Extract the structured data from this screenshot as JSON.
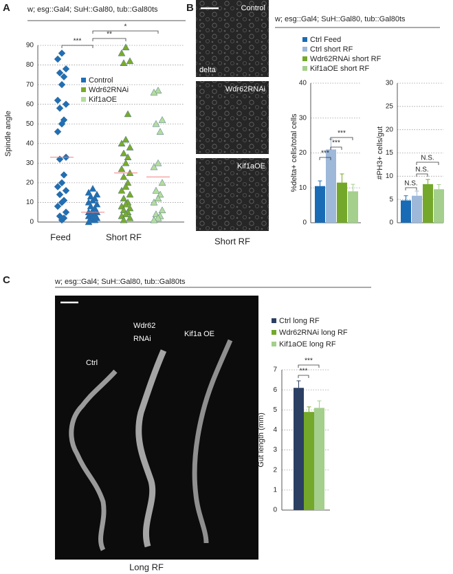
{
  "figure": {
    "panel_labels": [
      "A",
      "B",
      "C"
    ],
    "panel_b_images": [
      "Control",
      "Wdr62RNAi",
      "Kif1aOE"
    ],
    "panel_b_stain": "delta",
    "panel_b_caption": "Short RF",
    "panel_c_labels": [
      "Ctrl",
      "Wdr62",
      "RNAi",
      "Kif1a OE"
    ],
    "panel_c_caption": "Long RF"
  },
  "chart_data": [
    {
      "type": "strip",
      "title": "w; esg::Gal4; SuH::Gal80, tub::Gal80ts",
      "y_label": "Spindle angle",
      "categories": [
        "Feed",
        "Short RF"
      ],
      "markers": [
        "diamond",
        "triangle"
      ],
      "series": [
        {
          "name": "Control",
          "color": "#1f6fb5",
          "values_by_category": [
            [
              86,
              83,
              78,
              76,
              74,
              70,
              62,
              60,
              58,
              52,
              50,
              46,
              33,
              32,
              24,
              20,
              18,
              16,
              14,
              11,
              10,
              8,
              5,
              3,
              2,
              1
            ],
            [
              17,
              15,
              14,
              13,
              12,
              11,
              10,
              9,
              8,
              7,
              6,
              5,
              5,
              4,
              4,
              3,
              3,
              2,
              2,
              1,
              1,
              0
            ]
          ],
          "means": [
            33,
            5
          ]
        },
        {
          "name": "Wdr62RNAi",
          "color": "#79ab2a",
          "values_by_category": [
            null,
            [
              89,
              86,
              82,
              81,
              55,
              42,
              40,
              38,
              35,
              33,
              30,
              27,
              25,
              23,
              20,
              18,
              16,
              14,
              12,
              10,
              9,
              8,
              7,
              6,
              5,
              4,
              3,
              2,
              1
            ]
          ],
          "means": [
            null,
            25
          ]
        },
        {
          "name": "Kif1aOE",
          "color": "#b4dc9c",
          "values_by_category": [
            null,
            [
              67,
              66,
              52,
              50,
              46,
              30,
              28,
              20,
              16,
              14,
              12,
              10,
              6,
              4,
              3,
              2,
              1
            ]
          ],
          "means": [
            null,
            23
          ]
        }
      ],
      "mean_color": "#f08080",
      "annotations": [
        "***",
        "**",
        "*"
      ],
      "ylim": [
        0,
        90
      ],
      "yticks": [
        0,
        10,
        20,
        30,
        40,
        50,
        60,
        70,
        80,
        90
      ],
      "grid": true
    },
    {
      "type": "bar",
      "title": "w; esg::Gal4; SuH::Gal80, tub::Gal80ts",
      "y_label": "%delta+ cells/total cells",
      "series": [
        {
          "name": "Ctrl Feed",
          "color": "#1a6bb5",
          "values": [
            10.5
          ],
          "errors": [
            1.5
          ]
        },
        {
          "name": "Ctrl short RF",
          "color": "#9db8d9",
          "values": [
            21
          ],
          "errors": [
            3
          ]
        },
        {
          "name": "Wdr62RNAi short RF",
          "color": "#74a82a",
          "values": [
            11.5
          ],
          "errors": [
            2.5
          ]
        },
        {
          "name": "Kif1aOE short RF",
          "color": "#a4cf8d",
          "values": [
            9
          ],
          "errors": [
            2
          ]
        }
      ],
      "annotations": [
        "***",
        "***",
        "***"
      ],
      "ylim": [
        0,
        40
      ],
      "yticks": [
        0,
        10,
        20,
        30,
        40
      ],
      "grid": true
    },
    {
      "type": "bar",
      "y_label": "#PH3+ cells/gut",
      "colors": [
        "#1a6bb5",
        "#9db8d9",
        "#74a82a",
        "#a4cf8d"
      ],
      "values": [
        4.8,
        5.8,
        8.3,
        7.2
      ],
      "errors": [
        1,
        1,
        1,
        1
      ],
      "annotations": [
        "N.S.",
        "N.S.",
        "N.S."
      ],
      "ylim": [
        0,
        30
      ],
      "yticks": [
        0,
        5,
        10,
        15,
        20,
        25,
        30
      ],
      "grid": true
    },
    {
      "type": "bar",
      "title": "w; esg::Gal4; SuH::Gal80, tub::Gal80ts",
      "y_label": "Gut length (mm)",
      "series": [
        {
          "name": "Ctrl long RF",
          "color": "#2b3f63",
          "values": [
            6.1
          ],
          "errors": [
            0.35
          ]
        },
        {
          "name": "Wdr62RNAi long RF",
          "color": "#74a82a",
          "values": [
            4.9
          ],
          "errors": [
            0.25
          ]
        },
        {
          "name": "Kif1aOE long RF",
          "color": "#a4cf8d",
          "values": [
            5.1
          ],
          "errors": [
            0.35
          ]
        }
      ],
      "annotations": [
        "***",
        "***"
      ],
      "ylim": [
        0,
        7
      ],
      "yticks": [
        0,
        1,
        2,
        3,
        4,
        5,
        6,
        7
      ],
      "grid": true
    }
  ]
}
